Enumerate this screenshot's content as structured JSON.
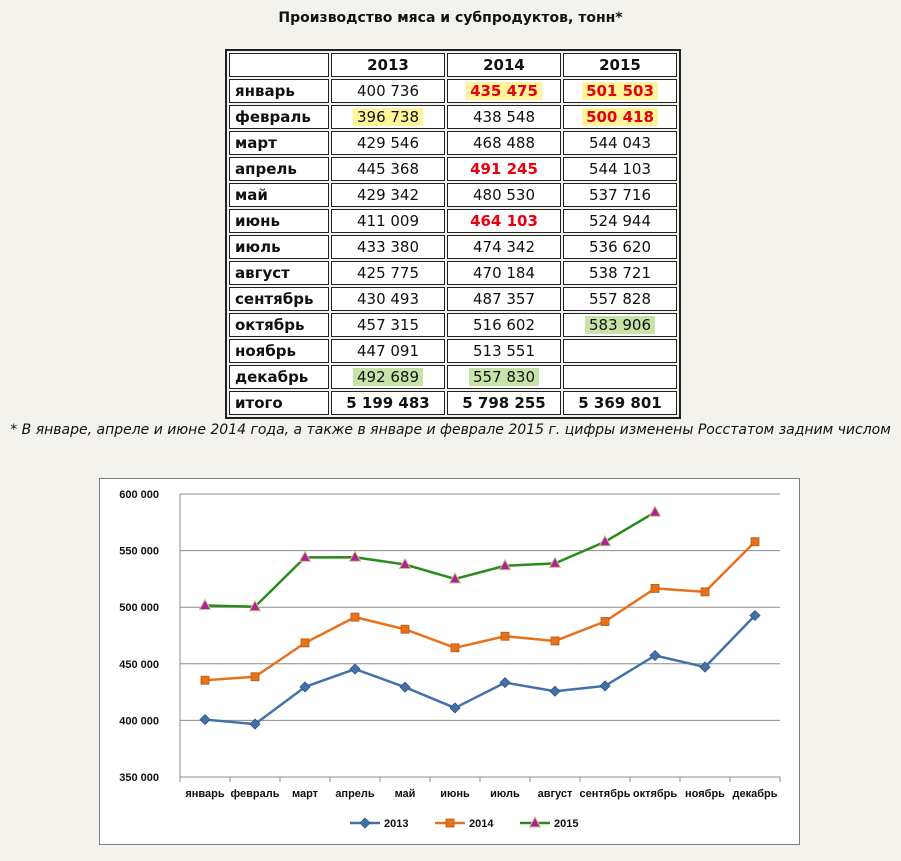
{
  "title": "Производство мяса и субпродуктов, тонн*",
  "table": {
    "headers": [
      "",
      "2013",
      "2014",
      "2015"
    ],
    "rows": [
      {
        "month": "январь",
        "cells": [
          "400 736",
          "435 475",
          "501 503"
        ]
      },
      {
        "month": "февраль",
        "cells": [
          "396 738",
          "438 548",
          "500 418"
        ]
      },
      {
        "month": "март",
        "cells": [
          "429 546",
          "468 488",
          "544 043"
        ]
      },
      {
        "month": "апрель",
        "cells": [
          "445 368",
          "491 245",
          "544 103"
        ]
      },
      {
        "month": "май",
        "cells": [
          "429 342",
          "480 530",
          "537 716"
        ]
      },
      {
        "month": "июнь",
        "cells": [
          "411 009",
          "464 103",
          "524 944"
        ]
      },
      {
        "month": "июль",
        "cells": [
          "433 380",
          "474 342",
          "536 620"
        ]
      },
      {
        "month": "август",
        "cells": [
          "425 775",
          "470 184",
          "538 721"
        ]
      },
      {
        "month": "сентябрь",
        "cells": [
          "430 493",
          "487 357",
          "557 828"
        ]
      },
      {
        "month": "октябрь",
        "cells": [
          "457 315",
          "516 602",
          "583 906"
        ]
      },
      {
        "month": "ноябрь",
        "cells": [
          "447 091",
          "513 551",
          ""
        ]
      },
      {
        "month": "декабрь",
        "cells": [
          "492 689",
          "557 830",
          ""
        ]
      }
    ],
    "total": {
      "label": "итого",
      "cells": [
        "5 199 483",
        "5 798 255",
        "5 369 801"
      ]
    }
  },
  "highlights": {
    "revised_red": [
      [
        0,
        1
      ],
      [
        0,
        2
      ],
      [
        1,
        2
      ],
      [
        3,
        1
      ],
      [
        5,
        1
      ]
    ],
    "yellow": [
      [
        0,
        1
      ],
      [
        0,
        2
      ],
      [
        1,
        0
      ],
      [
        1,
        2
      ]
    ],
    "green_max": [
      [
        9,
        2
      ],
      [
        11,
        0
      ],
      [
        11,
        1
      ]
    ],
    "colors": {
      "red": "#e8000e",
      "yellow": "#fff59a",
      "green": "#c8e3a8"
    }
  },
  "footnote": "* В январе, апреле и июне 2014 года, а также в январе и феврале 2015 г. цифры изменены Росстатом задним числом",
  "chart_data": {
    "type": "line",
    "categories": [
      "январь",
      "февраль",
      "март",
      "апрель",
      "май",
      "июнь",
      "июль",
      "август",
      "сентябрь",
      "октябрь",
      "ноябрь",
      "декабрь"
    ],
    "series": [
      {
        "name": "2013",
        "color": "#4472a8",
        "marker": "diamond",
        "values": [
          400736,
          396738,
          429546,
          445368,
          429342,
          411009,
          433380,
          425775,
          430493,
          457315,
          447091,
          492689
        ]
      },
      {
        "name": "2014",
        "color": "#e8711c",
        "marker": "square",
        "values": [
          435475,
          438548,
          468488,
          491245,
          480530,
          464103,
          474342,
          470184,
          487357,
          516602,
          513551,
          557830
        ]
      },
      {
        "name": "2015",
        "color": "#2b8a1e",
        "marker": "triangle",
        "marker_color": "#b0209c",
        "values": [
          501503,
          500418,
          544043,
          544103,
          537716,
          524944,
          536620,
          538721,
          557828,
          583906,
          null,
          null
        ]
      }
    ],
    "yticks": [
      "350 000",
      "400 000",
      "450 000",
      "500 000",
      "550 000",
      "600 000"
    ],
    "ylim": [
      350000,
      600000
    ],
    "grid": true,
    "legend": "bottom"
  }
}
